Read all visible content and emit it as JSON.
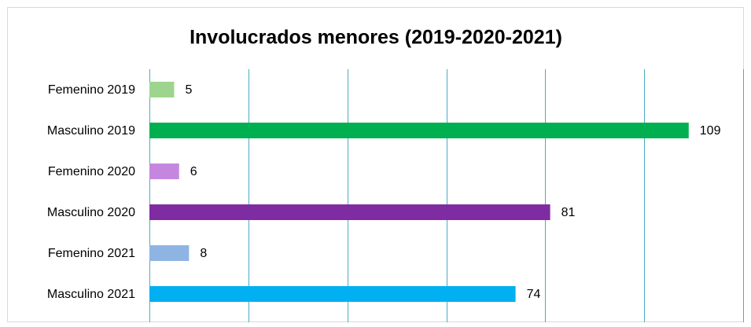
{
  "chart_data": {
    "type": "bar",
    "orientation": "horizontal",
    "title": "Involucrados menores (2019-2020-2021)",
    "categories": [
      "Femenino 2019",
      "Masculino 2019",
      "Femenino 2020",
      "Masculino 2020",
      "Femenino 2021",
      "Masculino 2021"
    ],
    "values": [
      5,
      109,
      6,
      81,
      8,
      74
    ],
    "colors": [
      "#9dd58f",
      "#00b050",
      "#c586e0",
      "#7f2ca3",
      "#8eb4e3",
      "#00b0f0"
    ],
    "xlim": [
      0,
      120
    ],
    "xticks": [
      0,
      20,
      40,
      60,
      80,
      100,
      120
    ],
    "grid": true
  }
}
